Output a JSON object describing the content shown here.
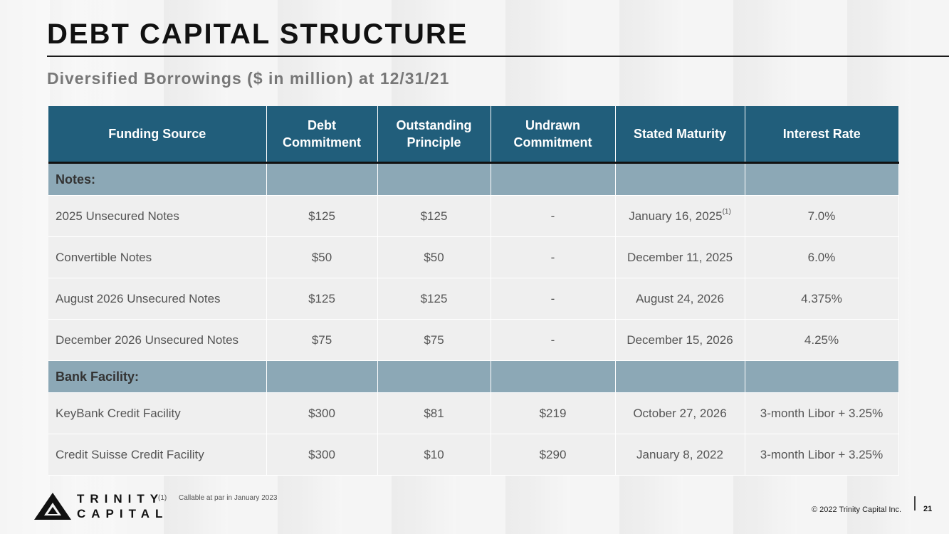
{
  "title": "DEBT CAPITAL STRUCTURE",
  "subtitle": "Diversified Borrowings ($ in million) at 12/31/21",
  "table": {
    "headers": [
      "Funding Source",
      "Debt Commitment",
      "Outstanding Principle",
      "Undrawn Commitment",
      "Stated Maturity",
      "Interest Rate"
    ],
    "sections": [
      {
        "label": "Notes:",
        "rows": [
          {
            "source": "2025 Unsecured Notes",
            "commitment": "$125",
            "outstanding": "$125",
            "undrawn": "-",
            "maturity": "January 16, 2025",
            "maturity_note": "(1)",
            "rate": "7.0%"
          },
          {
            "source": "Convertible Notes",
            "commitment": "$50",
            "outstanding": "$50",
            "undrawn": "-",
            "maturity": "December 11, 2025",
            "rate": "6.0%"
          },
          {
            "source": "August 2026 Unsecured Notes",
            "commitment": "$125",
            "outstanding": "$125",
            "undrawn": "-",
            "maturity": "August 24, 2026",
            "rate": "4.375%"
          },
          {
            "source": "December 2026 Unsecured Notes",
            "commitment": "$75",
            "outstanding": "$75",
            "undrawn": "-",
            "maturity": "December 15, 2026",
            "rate": "4.25%"
          }
        ]
      },
      {
        "label": "Bank Facility:",
        "rows": [
          {
            "source": "KeyBank Credit Facility",
            "commitment": "$300",
            "outstanding": "$81",
            "undrawn": "$219",
            "maturity": "October 27, 2026",
            "rate": "3-month Libor + 3.25%"
          },
          {
            "source": "Credit Suisse Credit Facility",
            "commitment": "$300",
            "outstanding": "$10",
            "undrawn": "$290",
            "maturity": "January 8, 2022",
            "rate": "3-month Libor + 3.25%"
          }
        ]
      }
    ]
  },
  "footnote": {
    "number": "(1)",
    "text": "Callable at par in January 2023"
  },
  "logo": {
    "line1": "TRINITY",
    "line2": "CAPITAL",
    "icon": "triangle-logo-icon"
  },
  "footer": {
    "copyright": "© 2022 Trinity Capital Inc.",
    "page_number": "21"
  },
  "colors": {
    "header_bg": "#215e7b",
    "section_bg": "#8ca8b6",
    "row_bg": "#efefef"
  }
}
